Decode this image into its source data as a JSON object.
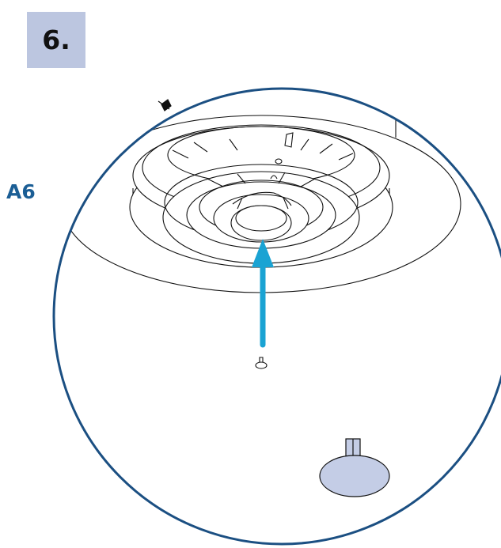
{
  "step": {
    "number": "6."
  },
  "part": {
    "label": "A6"
  },
  "colors": {
    "badge_background": "#bcc6e0",
    "callout_circle": "#1b4f82",
    "label_text": "#1b5e95",
    "arrow": "#1aa3d3",
    "part_fill": "#c4cde6",
    "line_art": "#111111"
  },
  "icons": {
    "arrow": "arrow-up-icon",
    "screw": "screw-icon",
    "foot": "rubber-foot-icon"
  }
}
